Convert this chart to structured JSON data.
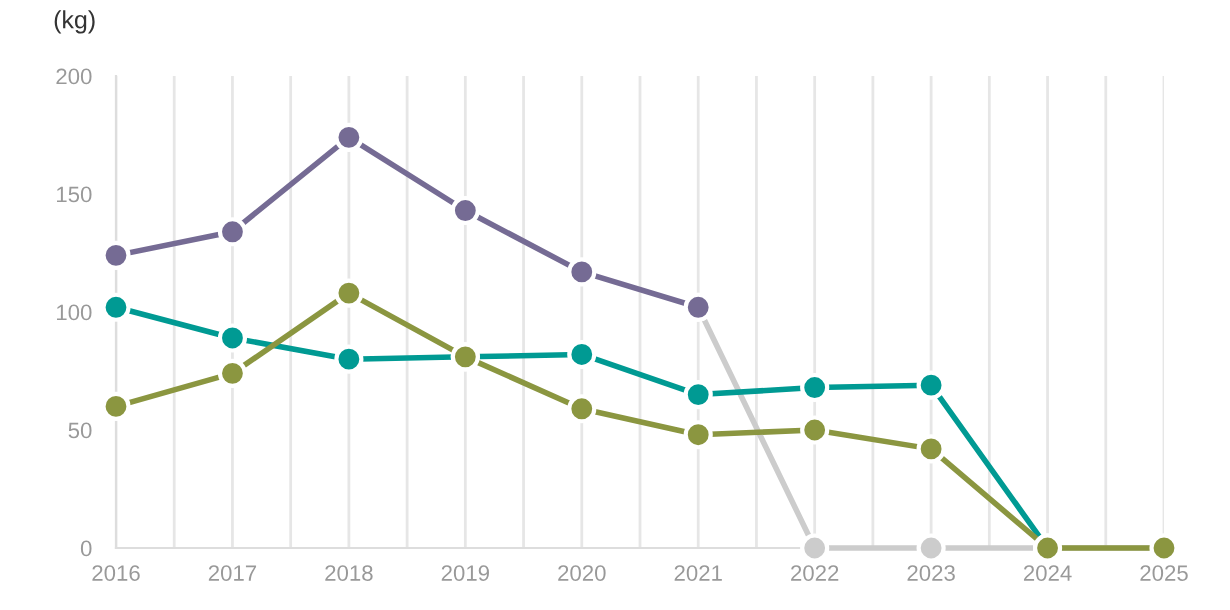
{
  "chart_data": {
    "type": "line",
    "ylabel": "(kg)",
    "x": [
      2016,
      2017,
      2018,
      2019,
      2020,
      2021,
      2022,
      2023,
      2024,
      2025
    ],
    "series": [
      {
        "color": "#cccccc",
        "x": [
          2021,
          2022,
          2023,
          2024,
          2025
        ],
        "values": [
          102,
          0,
          0,
          0,
          0
        ]
      },
      {
        "color": "#756b94",
        "x": [
          2016,
          2017,
          2018,
          2019,
          2020,
          2021
        ],
        "values": [
          124,
          134,
          174,
          143,
          117,
          102
        ]
      },
      {
        "color": "#009a93",
        "x": [
          2016,
          2017,
          2018,
          2019,
          2020,
          2021,
          2022,
          2023,
          2024
        ],
        "values": [
          102,
          89,
          80,
          81,
          82,
          65,
          68,
          69,
          0
        ]
      },
      {
        "color": "#8b9640",
        "values": [
          60,
          74,
          108,
          81,
          59,
          48,
          50,
          42,
          0,
          0
        ]
      }
    ],
    "xlim": [
      2016,
      2025
    ],
    "xticks": [
      2016,
      {
        "value": 2016.5,
        "label": null
      },
      2017,
      {
        "value": 2017.5,
        "label": null
      },
      2018,
      {
        "value": 2018.5,
        "label": null
      },
      2019,
      {
        "value": 2019.5,
        "label": null
      },
      2020,
      {
        "value": 2020.5,
        "label": null
      },
      2021,
      {
        "value": 2021.5,
        "label": null
      },
      2022,
      {
        "value": 2022.5,
        "label": null
      },
      2023,
      {
        "value": 2023.5,
        "label": null
      },
      2024,
      {
        "value": 2024.5,
        "label": null
      },
      2025
    ],
    "ylim": [
      0,
      200
    ],
    "yticks": [
      0,
      50,
      100,
      150,
      200
    ],
    "grid": "x",
    "marker": "circle",
    "line_style": "solid"
  }
}
